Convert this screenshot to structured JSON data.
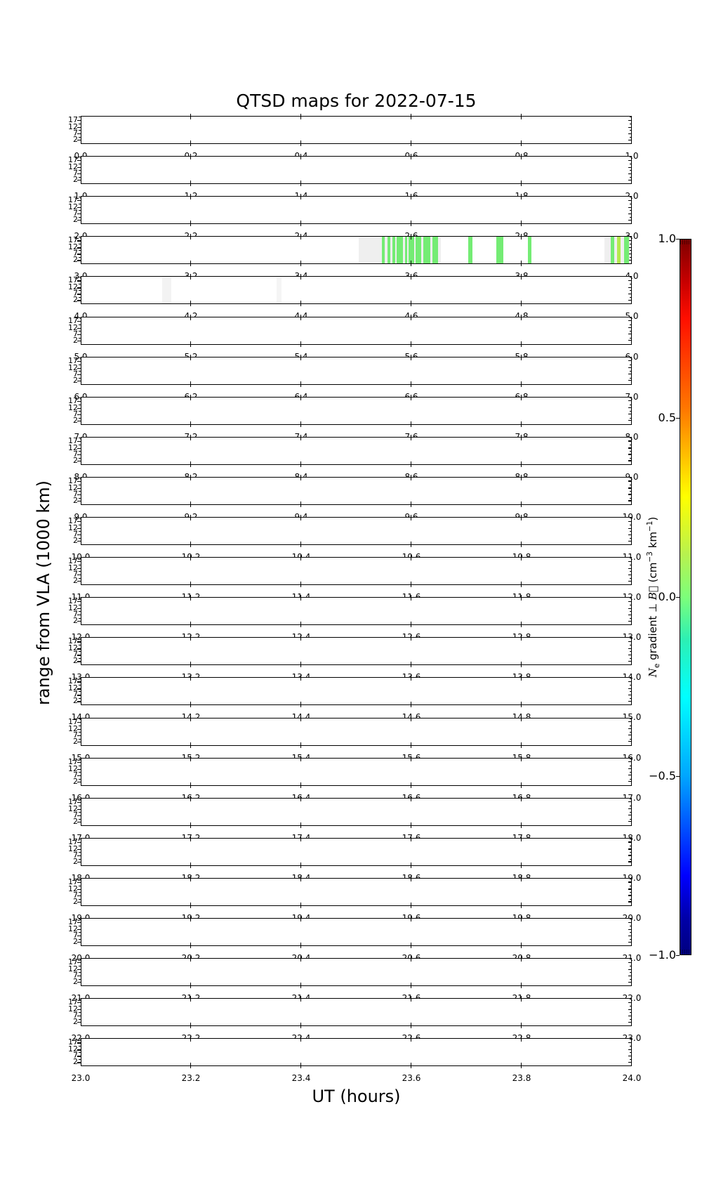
{
  "title": "QTSD maps for 2022-07-15",
  "xlabel": "UT (hours)",
  "ylabel": "range from VLA (1000 km)",
  "axes": {
    "ytick_labels": [
      "17",
      "12",
      "7",
      "2"
    ],
    "y_range_1000km": [
      0,
      20
    ]
  },
  "colorbar": {
    "ticks": [
      "1.0",
      "0.5",
      "0.0",
      "−0.5",
      "−1.0"
    ],
    "vmin": -1.0,
    "vmax": 1.0,
    "colormap": "jet",
    "label_parts": {
      "N": "N",
      "N_sub": "e",
      "mid": " gradient ⊥ ",
      "B": "B⃗",
      "unit1": " (cm",
      "sup1": "−3",
      "unit2": " km",
      "sup2": "−1",
      "close": ")"
    }
  },
  "panels": [
    {
      "hour": 0,
      "xtick_labels": [
        "0.0",
        "0.2",
        "0.4",
        "0.6",
        "0.8",
        "1.0"
      ]
    },
    {
      "hour": 1,
      "xtick_labels": [
        "1.0",
        "1.2",
        "1.4",
        "1.6",
        "1.8",
        "2.0"
      ]
    },
    {
      "hour": 2,
      "xtick_labels": [
        "2.0",
        "2.2",
        "2.4",
        "2.6",
        "2.8",
        "3.0"
      ]
    },
    {
      "hour": 3,
      "xtick_labels": [
        "3.0",
        "3.2",
        "3.4",
        "3.6",
        "3.8",
        "4.0"
      ]
    },
    {
      "hour": 4,
      "xtick_labels": [
        "4.0",
        "4.2",
        "4.4",
        "4.6",
        "4.8",
        "5.0"
      ]
    },
    {
      "hour": 5,
      "xtick_labels": [
        "5.0",
        "5.2",
        "5.4",
        "5.6",
        "5.8",
        "6.0"
      ]
    },
    {
      "hour": 6,
      "xtick_labels": [
        "6.0",
        "6.2",
        "6.4",
        "6.6",
        "6.8",
        "7.0"
      ]
    },
    {
      "hour": 7,
      "xtick_labels": [
        "7.0",
        "7.2",
        "7.4",
        "7.6",
        "7.8",
        "8.0"
      ]
    },
    {
      "hour": 8,
      "xtick_labels": [
        "8.0",
        "8.2",
        "8.4",
        "8.6",
        "8.8",
        "9.0"
      ]
    },
    {
      "hour": 9,
      "xtick_labels": [
        "9.0",
        "9.2",
        "9.4",
        "9.6",
        "9.8",
        "10.0"
      ]
    },
    {
      "hour": 10,
      "xtick_labels": [
        "10.0",
        "10.2",
        "10.4",
        "10.6",
        "10.8",
        "11.0"
      ]
    },
    {
      "hour": 11,
      "xtick_labels": [
        "11.0",
        "11.2",
        "11.4",
        "11.6",
        "11.8",
        "12.0"
      ]
    },
    {
      "hour": 12,
      "xtick_labels": [
        "12.0",
        "12.2",
        "12.4",
        "12.6",
        "12.8",
        "13.0"
      ]
    },
    {
      "hour": 13,
      "xtick_labels": [
        "13.0",
        "13.2",
        "13.4",
        "13.6",
        "13.8",
        "14.0"
      ]
    },
    {
      "hour": 14,
      "xtick_labels": [
        "14.0",
        "14.2",
        "14.4",
        "14.6",
        "14.8",
        "15.0"
      ]
    },
    {
      "hour": 15,
      "xtick_labels": [
        "15.0",
        "15.2",
        "15.4",
        "15.6",
        "15.8",
        "16.0"
      ]
    },
    {
      "hour": 16,
      "xtick_labels": [
        "16.0",
        "16.2",
        "16.4",
        "16.6",
        "16.8",
        "17.0"
      ]
    },
    {
      "hour": 17,
      "xtick_labels": [
        "17.0",
        "17.2",
        "17.4",
        "17.6",
        "17.8",
        "18.0"
      ]
    },
    {
      "hour": 18,
      "xtick_labels": [
        "18.0",
        "18.2",
        "18.4",
        "18.6",
        "18.8",
        "19.0"
      ]
    },
    {
      "hour": 19,
      "xtick_labels": [
        "19.0",
        "19.2",
        "19.4",
        "19.6",
        "19.8",
        "20.0"
      ]
    },
    {
      "hour": 20,
      "xtick_labels": [
        "20.0",
        "20.2",
        "20.4",
        "20.6",
        "20.8",
        "21.0"
      ]
    },
    {
      "hour": 21,
      "xtick_labels": [
        "21.0",
        "21.2",
        "21.4",
        "21.6",
        "21.8",
        "22.0"
      ]
    },
    {
      "hour": 22,
      "xtick_labels": [
        "22.0",
        "22.2",
        "22.4",
        "22.6",
        "22.8",
        "23.0"
      ]
    },
    {
      "hour": 23,
      "xtick_labels": [
        "23.0",
        "23.2",
        "23.4",
        "23.6",
        "23.8",
        "24.0"
      ]
    }
  ],
  "chart_data": {
    "type": "heatmap",
    "title": "QTSD maps for 2022-07-15",
    "xlabel": "UT (hours)",
    "ylabel": "range from VLA (1000 km)",
    "layout": "24 hourly panels stacked vertically, each spanning 1 hour of UT (0-24), x ticks every 0.2 h",
    "y_axis": {
      "range_1000km": [
        0,
        20
      ],
      "ticks": [
        17,
        12,
        7,
        2
      ]
    },
    "colorbar": {
      "label": "Ne gradient perp B (cm^-3 km^-1)",
      "range": [
        -1.0,
        1.0
      ],
      "ticks": [
        1.0,
        0.5,
        0.0,
        -0.5,
        -1.0
      ],
      "colormap": "jet",
      "position": "right"
    },
    "events": [
      {
        "hour": 3,
        "ut_start": 3.505,
        "ut_end": 3.655,
        "kind": "masked",
        "color": "#efefef",
        "value_approx": null
      },
      {
        "hour": 3,
        "ut_start": 3.953,
        "ut_end": 4.0,
        "kind": "masked",
        "color": "#efefef",
        "value_approx": null
      },
      {
        "hour": 3,
        "ut_start": 3.547,
        "ut_end": 3.553,
        "kind": "gradient",
        "color": "#74ec74",
        "value_approx": 0.05
      },
      {
        "hour": 3,
        "ut_start": 3.558,
        "ut_end": 3.563,
        "kind": "gradient",
        "color": "#74ec74",
        "value_approx": 0.05
      },
      {
        "hour": 3,
        "ut_start": 3.566,
        "ut_end": 3.571,
        "kind": "gradient",
        "color": "#74ec74",
        "value_approx": 0.05
      },
      {
        "hour": 3,
        "ut_start": 3.574,
        "ut_end": 3.586,
        "kind": "gradient",
        "color": "#74ec74",
        "value_approx": 0.05
      },
      {
        "hour": 3,
        "ut_start": 3.589,
        "ut_end": 3.593,
        "kind": "gradient",
        "color": "#74ec74",
        "value_approx": 0.05
      },
      {
        "hour": 3,
        "ut_start": 3.596,
        "ut_end": 3.606,
        "kind": "gradient",
        "color": "#74ec74",
        "value_approx": 0.05
      },
      {
        "hour": 3,
        "ut_start": 3.609,
        "ut_end": 3.619,
        "kind": "gradient",
        "color": "#74ec74",
        "value_approx": 0.05
      },
      {
        "hour": 3,
        "ut_start": 3.623,
        "ut_end": 3.635,
        "kind": "gradient",
        "color": "#74ec74",
        "value_approx": 0.05
      },
      {
        "hour": 3,
        "ut_start": 3.639,
        "ut_end": 3.649,
        "kind": "gradient",
        "color": "#74ec74",
        "value_approx": 0.05
      },
      {
        "hour": 3,
        "ut_start": 3.705,
        "ut_end": 3.712,
        "kind": "gradient",
        "color": "#74ec74",
        "value_approx": 0.05
      },
      {
        "hour": 3,
        "ut_start": 3.756,
        "ut_end": 3.768,
        "kind": "gradient",
        "color": "#74ec74",
        "value_approx": 0.05
      },
      {
        "hour": 3,
        "ut_start": 3.813,
        "ut_end": 3.82,
        "kind": "gradient",
        "color": "#74ec74",
        "value_approx": 0.05
      },
      {
        "hour": 3,
        "ut_start": 3.964,
        "ut_end": 3.971,
        "kind": "gradient",
        "color": "#74ec74",
        "value_approx": 0.05
      },
      {
        "hour": 3,
        "ut_start": 3.976,
        "ut_end": 3.982,
        "kind": "gradient",
        "color": "#b5e94e",
        "value_approx": 0.15
      },
      {
        "hour": 3,
        "ut_start": 3.989,
        "ut_end": 3.997,
        "kind": "gradient",
        "color": "#74ec74",
        "value_approx": 0.05
      },
      {
        "hour": 4,
        "ut_start": 4.147,
        "ut_end": 4.164,
        "kind": "masked",
        "color": "#f3f3f3",
        "value_approx": null
      },
      {
        "hour": 4,
        "ut_start": 4.356,
        "ut_end": 4.364,
        "kind": "masked",
        "color": "#f5f5f5",
        "value_approx": null
      }
    ]
  }
}
